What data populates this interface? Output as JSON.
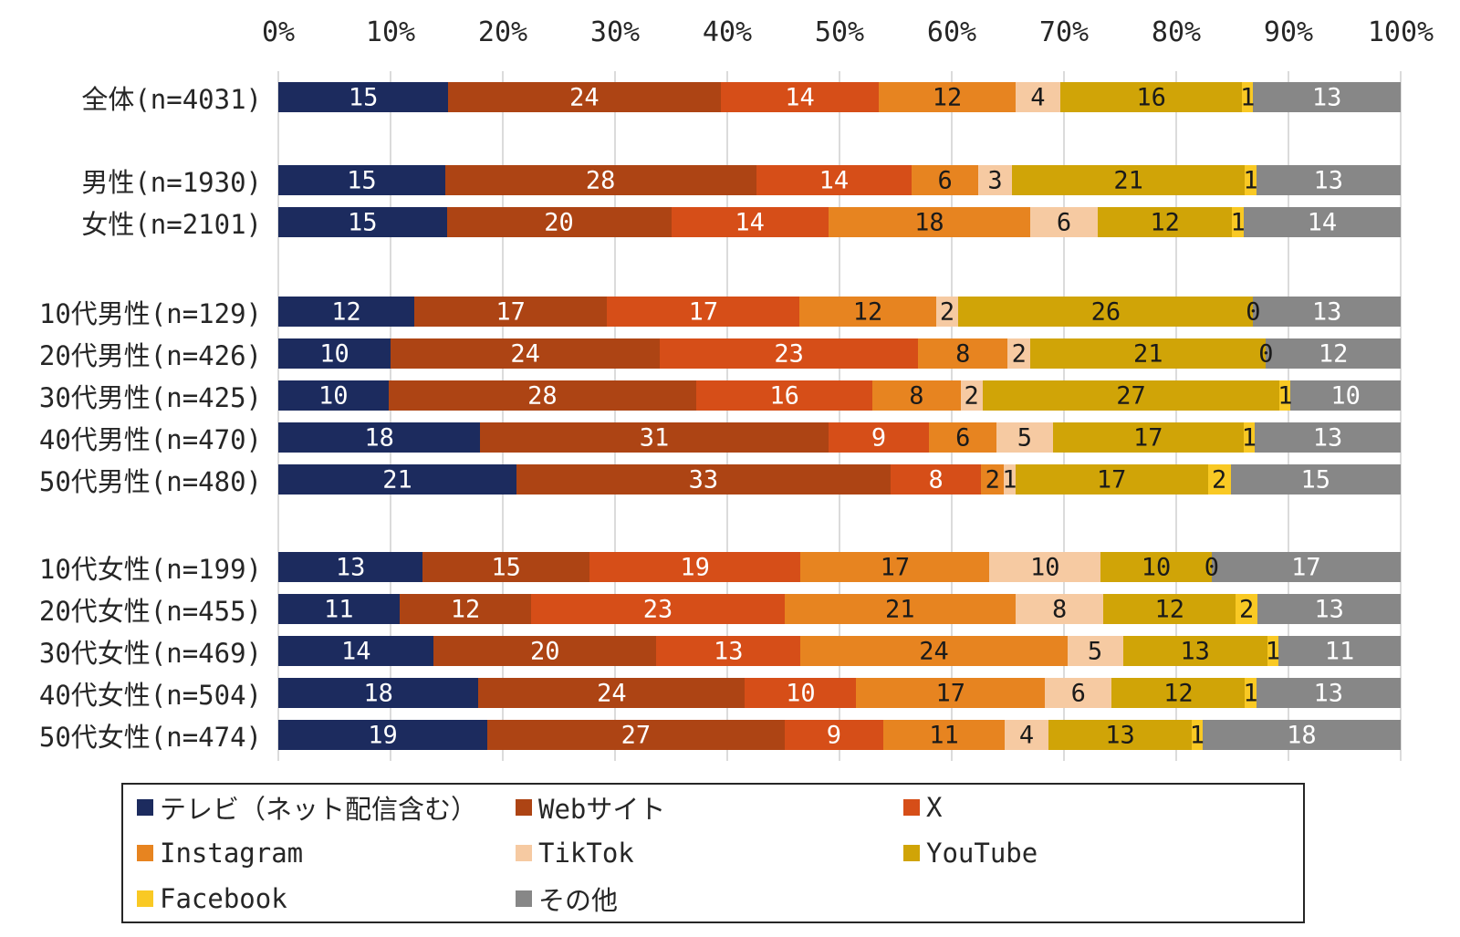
{
  "colors": {
    "background": "#FFFFFF",
    "gridline": "#DBDBDB",
    "text": "#262626",
    "legend_border": "#262626"
  },
  "chart_data": {
    "type": "bar",
    "orientation": "horizontal",
    "stacked": true,
    "title": "",
    "xlabel": "",
    "ylabel": "",
    "x_range": [
      0,
      100
    ],
    "grid": true,
    "x_axis_ticks": [
      "0%",
      "10%",
      "20%",
      "30%",
      "40%",
      "50%",
      "60%",
      "70%",
      "80%",
      "90%",
      "100%"
    ],
    "series": [
      {
        "name": "テレビ（ネット配信含む）",
        "color": "#1C2B5E",
        "value_text_color": "#FFFFFF"
      },
      {
        "name": "Webサイト",
        "color": "#AD4414",
        "value_text_color": "#FFFFFF"
      },
      {
        "name": "X",
        "color": "#D64E18",
        "value_text_color": "#FFFFFF"
      },
      {
        "name": "Instagram",
        "color": "#E78420",
        "value_text_color": "#1A1A1A"
      },
      {
        "name": "TikTok",
        "color": "#F6CAA2",
        "value_text_color": "#1A1A1A"
      },
      {
        "name": "YouTube",
        "color": "#D0A407",
        "value_text_color": "#1A1A1A"
      },
      {
        "name": "Facebook",
        "color": "#F9C924",
        "value_text_color": "#1A1A1A"
      },
      {
        "name": "その他",
        "color": "#878787",
        "value_text_color": "#FFFFFF"
      }
    ],
    "rows": [
      {
        "label": "全体(n=4031)",
        "group": 0,
        "values": [
          15,
          24,
          14,
          12,
          4,
          16,
          1,
          13
        ]
      },
      {
        "label": "男性(n=1930)",
        "group": 1,
        "values": [
          15,
          28,
          14,
          6,
          3,
          21,
          1,
          13
        ]
      },
      {
        "label": "女性(n=2101)",
        "group": 1,
        "values": [
          15,
          20,
          14,
          18,
          6,
          12,
          1,
          14
        ]
      },
      {
        "label": "10代男性(n=129)",
        "group": 2,
        "values": [
          12,
          17,
          17,
          12,
          2,
          26,
          0,
          13
        ]
      },
      {
        "label": "20代男性(n=426)",
        "group": 2,
        "values": [
          10,
          24,
          23,
          8,
          2,
          21,
          0,
          12
        ]
      },
      {
        "label": "30代男性(n=425)",
        "group": 2,
        "values": [
          10,
          28,
          16,
          8,
          2,
          27,
          1,
          10
        ]
      },
      {
        "label": "40代男性(n=470)",
        "group": 2,
        "values": [
          18,
          31,
          9,
          6,
          5,
          17,
          1,
          13
        ]
      },
      {
        "label": "50代男性(n=480)",
        "group": 2,
        "values": [
          21,
          33,
          8,
          2,
          1,
          17,
          2,
          15
        ]
      },
      {
        "label": "10代女性(n=199)",
        "group": 3,
        "values": [
          13,
          15,
          19,
          17,
          10,
          10,
          0,
          17
        ]
      },
      {
        "label": "20代女性(n=455)",
        "group": 3,
        "values": [
          11,
          12,
          23,
          21,
          8,
          12,
          2,
          13
        ]
      },
      {
        "label": "30代女性(n=469)",
        "group": 3,
        "values": [
          14,
          20,
          13,
          24,
          5,
          13,
          1,
          11
        ]
      },
      {
        "label": "40代女性(n=504)",
        "group": 3,
        "values": [
          18,
          24,
          10,
          17,
          6,
          12,
          1,
          13
        ]
      },
      {
        "label": "50代女性(n=474)",
        "group": 3,
        "values": [
          19,
          27,
          9,
          11,
          4,
          13,
          1,
          18
        ]
      }
    ],
    "legend": {
      "position": "bottom",
      "columns": 3
    }
  }
}
